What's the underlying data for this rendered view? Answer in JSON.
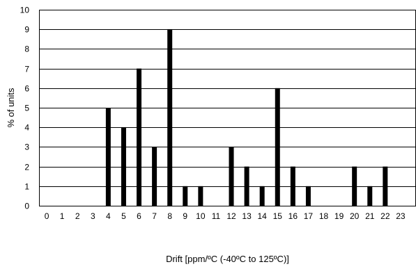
{
  "chart_data": {
    "type": "bar",
    "xlabel": "Drift [ppm/ºC (-40ºC to 125ºC)]",
    "ylabel": "% of units",
    "categories": [
      "0",
      "1",
      "2",
      "3",
      "4",
      "5",
      "6",
      "7",
      "8",
      "9",
      "10",
      "11",
      "12",
      "13",
      "14",
      "15",
      "16",
      "17",
      "18",
      "19",
      "20",
      "21",
      "22",
      "23"
    ],
    "values": [
      0,
      0,
      0,
      0,
      5,
      4,
      7,
      3,
      9,
      1,
      1,
      0,
      3,
      2,
      1,
      6,
      2,
      1,
      0,
      0,
      2,
      1,
      2,
      0
    ],
    "ylim": [
      0,
      10
    ],
    "yticks": [
      0,
      1,
      2,
      3,
      4,
      5,
      6,
      7,
      8,
      9,
      10
    ],
    "grid": true,
    "colors": {
      "bar": "#000000",
      "grid": "#000000",
      "background": "#ffffff"
    }
  }
}
